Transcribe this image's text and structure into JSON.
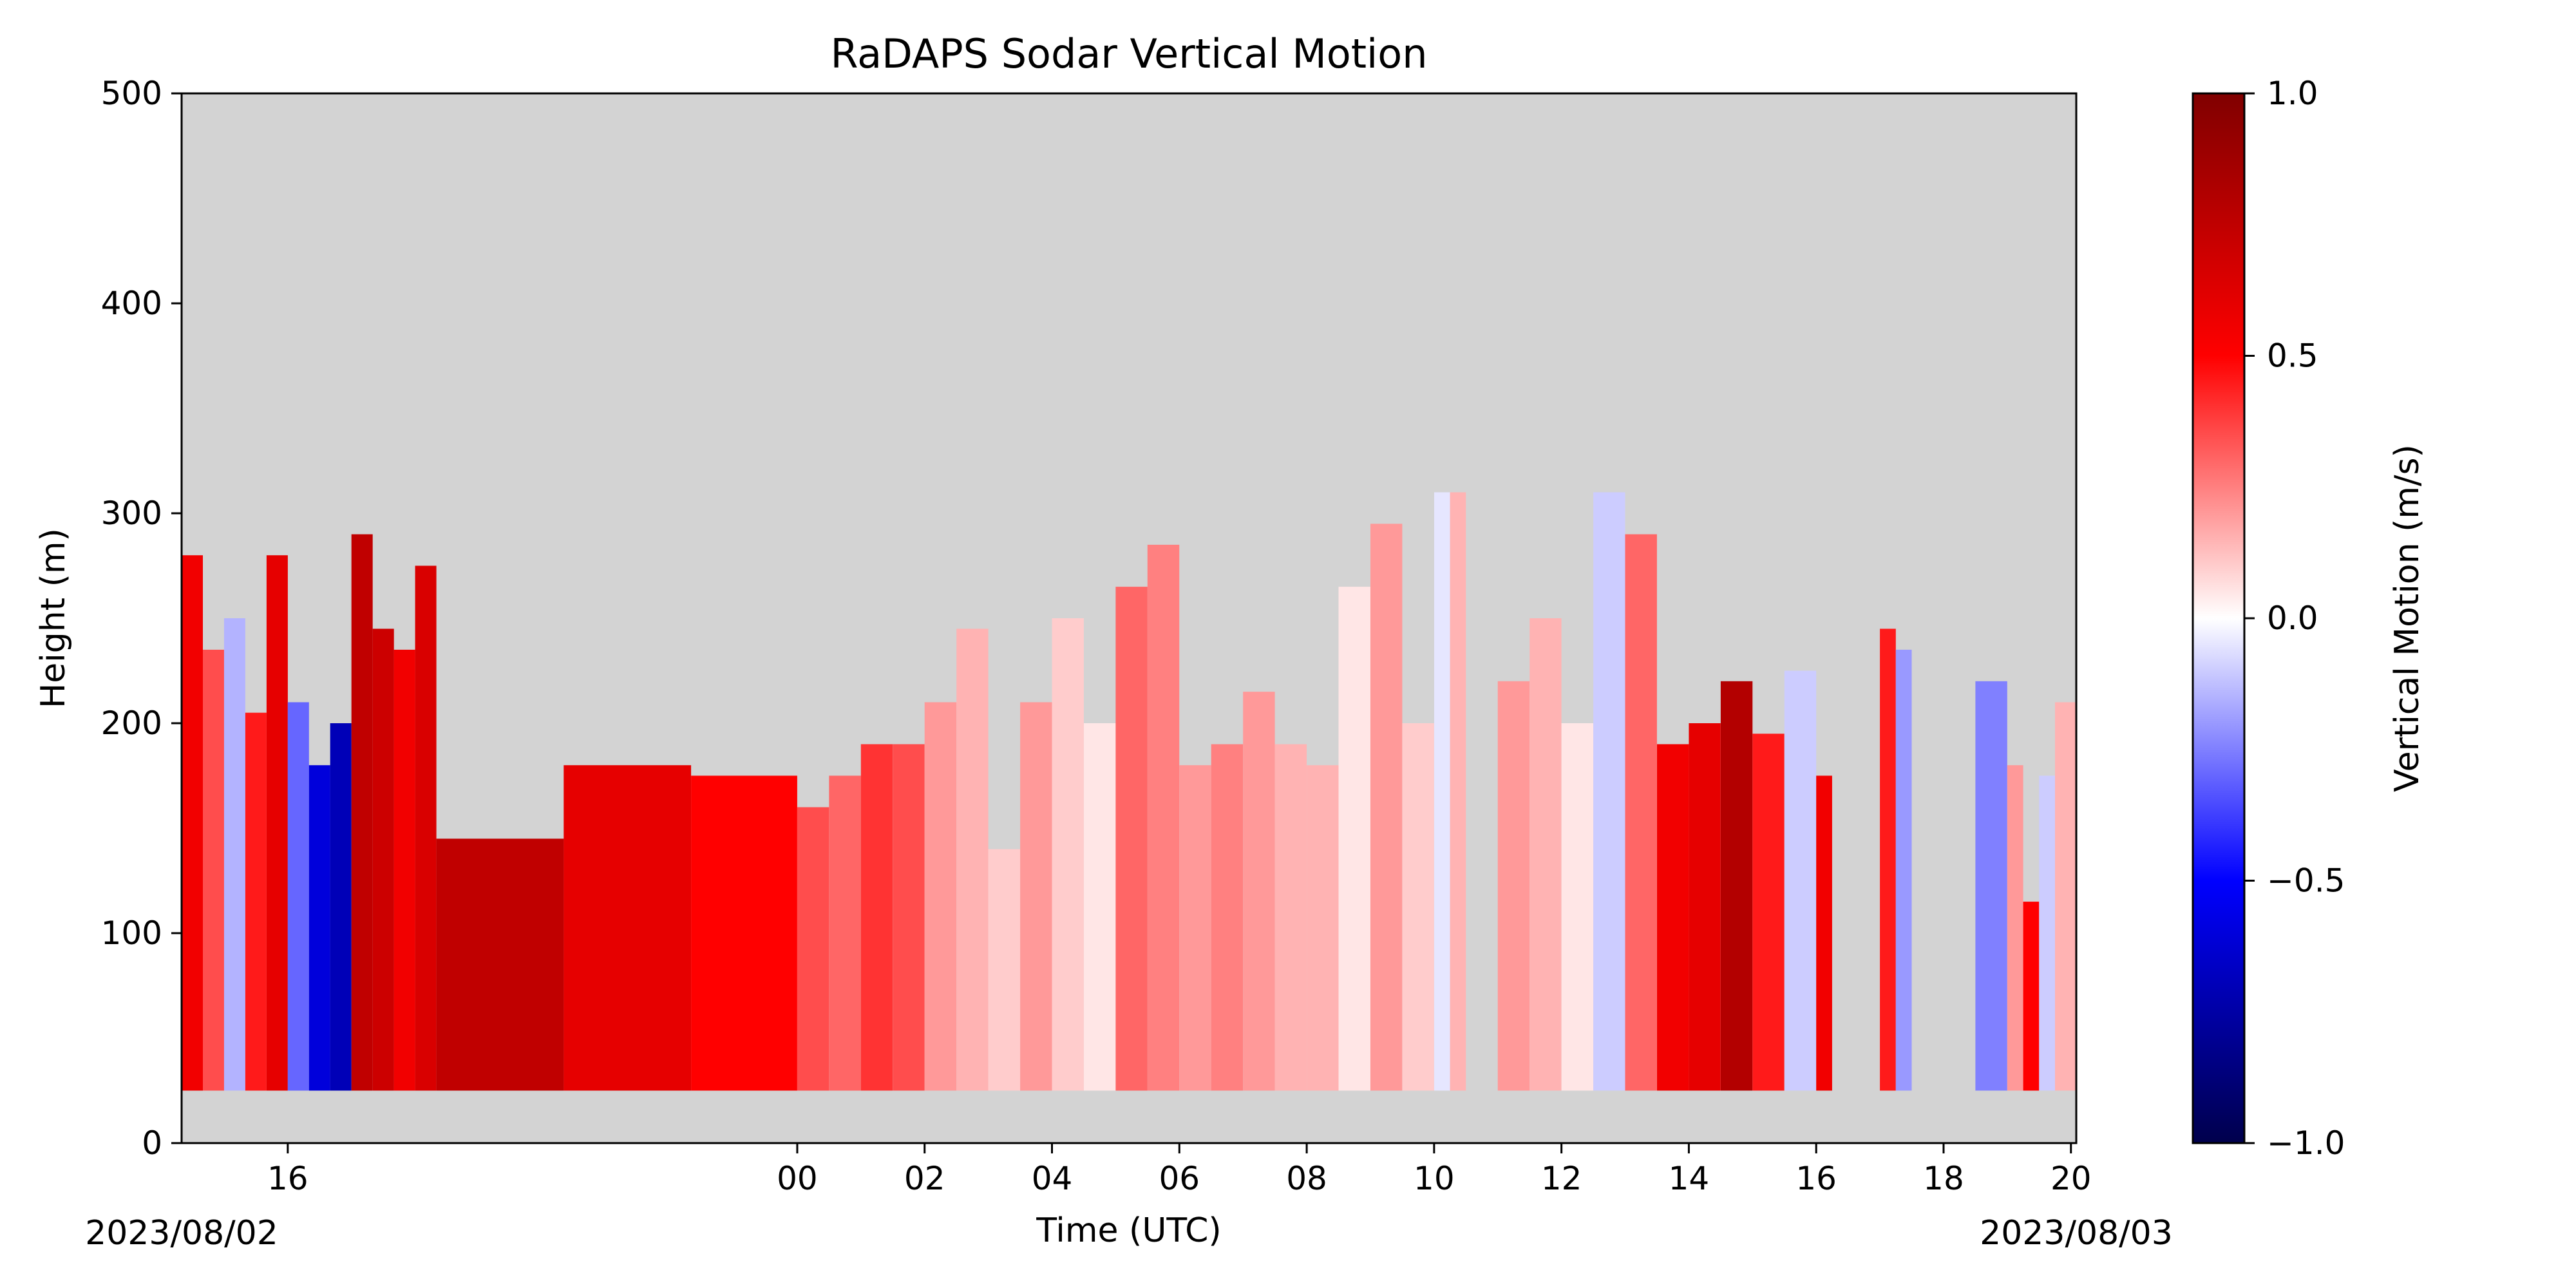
{
  "chart_data": {
    "type": "heatmap",
    "title": "RaDAPS Sodar Vertical Motion",
    "xlabel": "Time (UTC)",
    "ylabel": "Height (m)",
    "colorbar_label": "Vertical Motion (m/s)",
    "colormap": "seismic",
    "colors": {
      "missing": "#d3d3d3",
      "min": "#00004c",
      "neg_mid": "#0000ff",
      "zero": "#ffffff",
      "pos_mid": "#ff0000",
      "max": "#800000"
    },
    "clim": [
      -1.0,
      1.0
    ],
    "colorbar_ticks": [
      "−1.0",
      "−0.5",
      "0.0",
      "0.5",
      "1.0"
    ],
    "colorbar_tick_values": [
      -1.0,
      -0.5,
      0.0,
      0.5,
      1.0
    ],
    "xlim": [
      "2023-08-02T14:20",
      "2023-08-03T20:05"
    ],
    "ylim": [
      0,
      500
    ],
    "x_ticks": [
      {
        "label": "16",
        "time": "2023-08-02T16:00"
      },
      {
        "label": "00",
        "time": "2023-08-03T00:00"
      },
      {
        "label": "02",
        "time": "2023-08-03T02:00"
      },
      {
        "label": "04",
        "time": "2023-08-03T04:00"
      },
      {
        "label": "06",
        "time": "2023-08-03T06:00"
      },
      {
        "label": "08",
        "time": "2023-08-03T08:00"
      },
      {
        "label": "10",
        "time": "2023-08-03T10:00"
      },
      {
        "label": "12",
        "time": "2023-08-03T12:00"
      },
      {
        "label": "14",
        "time": "2023-08-03T14:00"
      },
      {
        "label": "16",
        "time": "2023-08-03T16:00"
      },
      {
        "label": "18",
        "time": "2023-08-03T18:00"
      },
      {
        "label": "20",
        "time": "2023-08-03T20:00"
      }
    ],
    "y_ticks": [
      0,
      100,
      200,
      300,
      400,
      500
    ],
    "date_labels": [
      "2023/08/02",
      "2023/08/03"
    ],
    "min_height": 25,
    "profiles": [
      {
        "start": "2023-08-02T14:20",
        "end": "2023-08-02T14:40",
        "top": 280,
        "w": 0.55
      },
      {
        "start": "2023-08-02T14:40",
        "end": "2023-08-02T15:00",
        "top": 235,
        "w": 0.35
      },
      {
        "start": "2023-08-02T15:00",
        "end": "2023-08-02T15:20",
        "top": 250,
        "w": -0.15
      },
      {
        "start": "2023-08-02T15:20",
        "end": "2023-08-02T15:40",
        "top": 205,
        "w": 0.45
      },
      {
        "start": "2023-08-02T15:40",
        "end": "2023-08-02T16:00",
        "top": 280,
        "w": 0.6
      },
      {
        "start": "2023-08-02T16:00",
        "end": "2023-08-02T16:20",
        "top": 210,
        "w": -0.3
      },
      {
        "start": "2023-08-02T16:20",
        "end": "2023-08-02T16:40",
        "top": 180,
        "w": -0.6
      },
      {
        "start": "2023-08-02T16:40",
        "end": "2023-08-02T17:00",
        "top": 200,
        "w": -0.7
      },
      {
        "start": "2023-08-02T17:00",
        "end": "2023-08-02T17:20",
        "top": 290,
        "w": 0.75
      },
      {
        "start": "2023-08-02T17:20",
        "end": "2023-08-02T17:40",
        "top": 245,
        "w": 0.7
      },
      {
        "start": "2023-08-02T17:40",
        "end": "2023-08-02T18:00",
        "top": 235,
        "w": 0.55
      },
      {
        "start": "2023-08-02T18:00",
        "end": "2023-08-02T18:20",
        "top": 275,
        "w": 0.65
      },
      {
        "start": "2023-08-02T18:20",
        "end": "2023-08-02T20:20",
        "top": 145,
        "w": 0.75
      },
      {
        "start": "2023-08-02T20:20",
        "end": "2023-08-02T22:20",
        "top": 180,
        "w": 0.6
      },
      {
        "start": "2023-08-02T22:20",
        "end": "2023-08-03T00:00",
        "top": 175,
        "w": 0.5
      },
      {
        "start": "2023-08-03T00:00",
        "end": "2023-08-03T00:30",
        "top": 160,
        "w": 0.35
      },
      {
        "start": "2023-08-03T00:30",
        "end": "2023-08-03T01:00",
        "top": 175,
        "w": 0.3
      },
      {
        "start": "2023-08-03T01:00",
        "end": "2023-08-03T01:30",
        "top": 190,
        "w": 0.4
      },
      {
        "start": "2023-08-03T01:30",
        "end": "2023-08-03T02:00",
        "top": 190,
        "w": 0.35
      },
      {
        "start": "2023-08-03T02:00",
        "end": "2023-08-03T02:30",
        "top": 210,
        "w": 0.2
      },
      {
        "start": "2023-08-03T02:30",
        "end": "2023-08-03T03:00",
        "top": 245,
        "w": 0.15
      },
      {
        "start": "2023-08-03T03:00",
        "end": "2023-08-03T03:30",
        "top": 140,
        "w": 0.1
      },
      {
        "start": "2023-08-03T03:30",
        "end": "2023-08-03T04:00",
        "top": 210,
        "w": 0.2
      },
      {
        "start": "2023-08-03T04:00",
        "end": "2023-08-03T04:30",
        "top": 250,
        "w": 0.1
      },
      {
        "start": "2023-08-03T04:30",
        "end": "2023-08-03T05:00",
        "top": 200,
        "w": 0.05
      },
      {
        "start": "2023-08-03T05:00",
        "end": "2023-08-03T05:30",
        "top": 265,
        "w": 0.3
      },
      {
        "start": "2023-08-03T05:30",
        "end": "2023-08-03T06:00",
        "top": 285,
        "w": 0.25
      },
      {
        "start": "2023-08-03T06:00",
        "end": "2023-08-03T06:30",
        "top": 180,
        "w": 0.2
      },
      {
        "start": "2023-08-03T06:30",
        "end": "2023-08-03T07:00",
        "top": 190,
        "w": 0.25
      },
      {
        "start": "2023-08-03T07:00",
        "end": "2023-08-03T07:30",
        "top": 215,
        "w": 0.2
      },
      {
        "start": "2023-08-03T07:30",
        "end": "2023-08-03T08:00",
        "top": 190,
        "w": 0.15
      },
      {
        "start": "2023-08-03T08:00",
        "end": "2023-08-03T08:30",
        "top": 180,
        "w": 0.15
      },
      {
        "start": "2023-08-03T08:30",
        "end": "2023-08-03T09:00",
        "top": 265,
        "w": 0.05
      },
      {
        "start": "2023-08-03T09:00",
        "end": "2023-08-03T09:30",
        "top": 295,
        "w": 0.2
      },
      {
        "start": "2023-08-03T09:30",
        "end": "2023-08-03T10:00",
        "top": 200,
        "w": 0.1
      },
      {
        "start": "2023-08-03T10:00",
        "end": "2023-08-03T10:15",
        "top": 310,
        "w": -0.05
      },
      {
        "start": "2023-08-03T10:15",
        "end": "2023-08-03T10:30",
        "top": 310,
        "w": 0.15
      },
      {
        "start": "2023-08-03T11:00",
        "end": "2023-08-03T11:30",
        "top": 220,
        "w": 0.2
      },
      {
        "start": "2023-08-03T11:30",
        "end": "2023-08-03T12:00",
        "top": 250,
        "w": 0.15
      },
      {
        "start": "2023-08-03T12:00",
        "end": "2023-08-03T12:30",
        "top": 200,
        "w": 0.05
      },
      {
        "start": "2023-08-03T12:30",
        "end": "2023-08-03T13:00",
        "top": 310,
        "w": -0.1
      },
      {
        "start": "2023-08-03T13:00",
        "end": "2023-08-03T13:30",
        "top": 290,
        "w": 0.3
      },
      {
        "start": "2023-08-03T13:30",
        "end": "2023-08-03T14:00",
        "top": 190,
        "w": 0.55
      },
      {
        "start": "2023-08-03T14:00",
        "end": "2023-08-03T14:30",
        "top": 200,
        "w": 0.6
      },
      {
        "start": "2023-08-03T14:30",
        "end": "2023-08-03T15:00",
        "top": 220,
        "w": 0.8
      },
      {
        "start": "2023-08-03T15:00",
        "end": "2023-08-03T15:30",
        "top": 195,
        "w": 0.45
      },
      {
        "start": "2023-08-03T15:30",
        "end": "2023-08-03T16:00",
        "top": 225,
        "w": -0.1
      },
      {
        "start": "2023-08-03T16:00",
        "end": "2023-08-03T16:15",
        "top": 175,
        "w": 0.55
      },
      {
        "start": "2023-08-03T17:00",
        "end": "2023-08-03T17:15",
        "top": 245,
        "w": 0.45
      },
      {
        "start": "2023-08-03T17:15",
        "end": "2023-08-03T17:30",
        "top": 235,
        "w": -0.2
      },
      {
        "start": "2023-08-03T18:30",
        "end": "2023-08-03T19:00",
        "top": 220,
        "w": -0.25
      },
      {
        "start": "2023-08-03T19:00",
        "end": "2023-08-03T19:15",
        "top": 180,
        "w": 0.2
      },
      {
        "start": "2023-08-03T19:15",
        "end": "2023-08-03T19:30",
        "top": 115,
        "w": 0.5
      },
      {
        "start": "2023-08-03T19:30",
        "end": "2023-08-03T19:45",
        "top": 175,
        "w": -0.1
      },
      {
        "start": "2023-08-03T19:45",
        "end": "2023-08-03T20:05",
        "top": 210,
        "w": 0.15
      }
    ]
  }
}
